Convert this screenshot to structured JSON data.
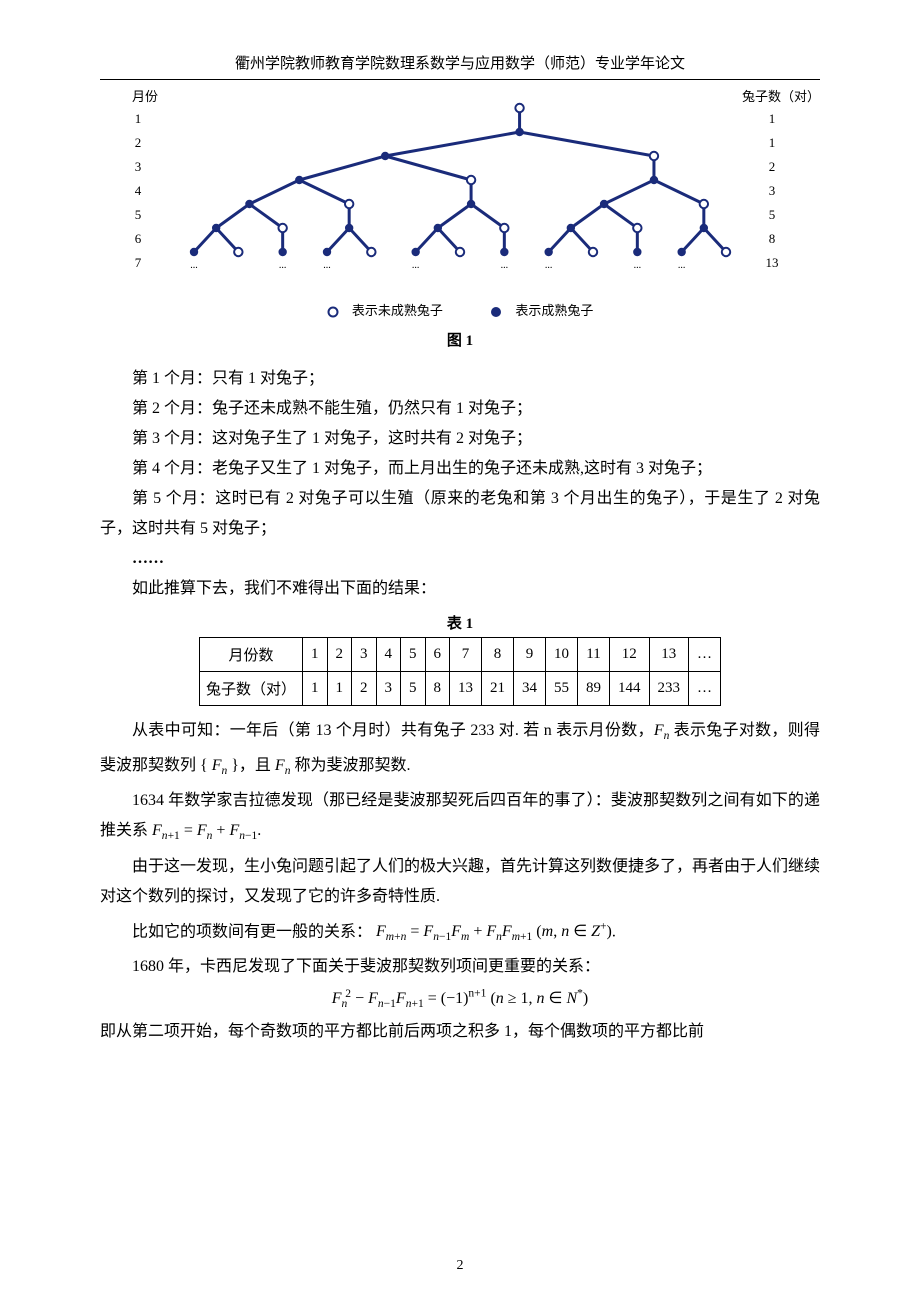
{
  "header": "衢州学院教师教育学院数理系数学与应用数学（师范）专业学年论文",
  "tree": {
    "month_label": "月份",
    "count_label": "兔子数（对）",
    "months": [
      "1",
      "2",
      "3",
      "4",
      "5",
      "6",
      "7"
    ],
    "counts": [
      "1",
      "1",
      "2",
      "3",
      "5",
      "8",
      "13"
    ],
    "dots_under": "...",
    "node_stroke": "#1a2b7a",
    "node_fill_open": "#ffffff",
    "node_fill_filled": "#1a2b7a",
    "edge_color": "#1a2b7a",
    "edge_width": 3,
    "node_r": 4.2
  },
  "legend": {
    "open_text": "表示未成熟兔子",
    "filled_text": "表示成熟兔子"
  },
  "fig_caption": "图 1",
  "paragraphs_a": [
    "第 1 个月：只有 1 对兔子；",
    "第 2 个月：兔子还未成熟不能生殖，仍然只有 1 对兔子；",
    "第 3 个月：这对兔子生了 1 对兔子，这时共有 2 对兔子；",
    "第 4 个月：老兔子又生了 1 对兔子，而上月出生的兔子还未成熟,这时有 3 对兔子；",
    "第 5 个月：这时已有 2 对兔子可以生殖（原来的老兔和第 3 个月出生的兔子），于是生了 2 对兔子，这时共有 5 对兔子；"
  ],
  "ellipsis": "……",
  "para_b": "如此推算下去，我们不难得出下面的结果：",
  "table_caption": "表 1",
  "table": {
    "row1_label": "月份数",
    "row2_label": "兔子数（对）",
    "months": [
      "1",
      "2",
      "3",
      "4",
      "5",
      "6",
      "7",
      "8",
      "9",
      "10",
      "11",
      "12",
      "13",
      "…"
    ],
    "rabbits": [
      "1",
      "1",
      "2",
      "3",
      "5",
      "8",
      "13",
      "21",
      "34",
      "55",
      "89",
      "144",
      "233",
      "…"
    ]
  },
  "para_c1_a": "从表中可知：一年后（第 13 个月时）共有兔子 233 对. 若 n 表示月份数，",
  "para_c1_b": " 表示兔子对数，则得斐波那契数列 { ",
  "para_c1_c": " }，且 ",
  "para_c1_d": " 称为斐波那契数.",
  "para_c2_a": "1634 年数学家吉拉德发现（那已经是斐波那契死后四百年的事了）：斐波那契数列之间有如下的递推关系 ",
  "para_c2_b": ".",
  "para_c3": "由于这一发现，生小兔问题引起了人们的极大兴趣，首先计算这列数便捷多了，再者由于人们继续对这个数列的探讨，又发现了它的许多奇特性质.",
  "para_c4_a": "比如它的项数间有更一般的关系：",
  "para_c4_b": ".",
  "para_c5": "1680 年，卡西尼发现了下面关于斐波那契数列项间更重要的关系：",
  "eq_center_tail": "",
  "para_c6": "即从第二项开始，每个奇数项的平方都比前后两项之积多 1，每个偶数项的平方都比前",
  "page_number": "2",
  "math": {
    "Fn": "F",
    "Fn_sub": "n",
    "recurrence_lhs": "F",
    "recurrence": "F_{n+1} = F_n + F_{n-1}",
    "gen_rel": "F_{m+n} = F_{n-1}F_m + F_nF_{m+1} (m,n ∈ Z^+)",
    "cassini": "F_n^2 − F_{n-1}F_{n+1} = (−1)^{n+1} (n ≥ 1, n ∈ N*)"
  }
}
